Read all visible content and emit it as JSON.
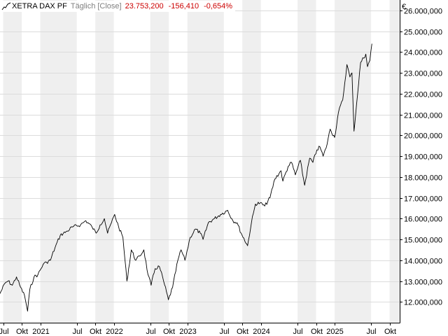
{
  "legend": {
    "name": "XETRA DAX PF",
    "interval": "Täglich",
    "price_type": "[Close]",
    "last": "23.753,200",
    "change": "-156,410",
    "change_pct": "-0,654%"
  },
  "currency_label": "€",
  "colors": {
    "line": "#000000",
    "negative": "#cc0000",
    "band": "#efefef",
    "grid": "#dcdcdc",
    "text": "#000000"
  },
  "chart_data": {
    "type": "line",
    "title": "",
    "xlabel": "",
    "ylabel": "",
    "ylim": [
      11000,
      26500
    ],
    "xlim": [
      "2020-06-15",
      "2025-11-20"
    ],
    "grid": true,
    "legend_position": "top-left",
    "y_ticks": [
      {
        "value": 12000,
        "label": "12.000,000"
      },
      {
        "value": 13000,
        "label": "13.000,000"
      },
      {
        "value": 14000,
        "label": "14.000,000"
      },
      {
        "value": 15000,
        "label": "15.000,000"
      },
      {
        "value": 16000,
        "label": "16.000,000"
      },
      {
        "value": 17000,
        "label": "17.000,000"
      },
      {
        "value": 18000,
        "label": "18.000,000"
      },
      {
        "value": 19000,
        "label": "19.000,000"
      },
      {
        "value": 20000,
        "label": "20.000,000"
      },
      {
        "value": 21000,
        "label": "21.000,000"
      },
      {
        "value": 22000,
        "label": "22.000,000"
      },
      {
        "value": 23000,
        "label": "23.000,000"
      },
      {
        "value": 24000,
        "label": "24.000,000"
      },
      {
        "value": 25000,
        "label": "25.000,000"
      },
      {
        "value": 26000,
        "label": "26.000,000"
      }
    ],
    "x_ticks": [
      {
        "date": "2020-07-01",
        "label": "Jul"
      },
      {
        "date": "2020-10-01",
        "label": "Okt"
      },
      {
        "date": "2021-01-01",
        "label": "2021"
      },
      {
        "date": "2021-07-01",
        "label": "Jul"
      },
      {
        "date": "2021-10-01",
        "label": "Okt"
      },
      {
        "date": "2022-01-01",
        "label": "2022"
      },
      {
        "date": "2022-07-01",
        "label": "Jul"
      },
      {
        "date": "2022-10-01",
        "label": "Okt"
      },
      {
        "date": "2023-01-01",
        "label": "2023"
      },
      {
        "date": "2023-07-01",
        "label": "Jul"
      },
      {
        "date": "2023-10-01",
        "label": "Okt"
      },
      {
        "date": "2024-01-01",
        "label": "2024"
      },
      {
        "date": "2024-07-01",
        "label": "Jul"
      },
      {
        "date": "2024-10-01",
        "label": "Okt"
      },
      {
        "date": "2025-01-01",
        "label": "2025"
      },
      {
        "date": "2025-07-01",
        "label": "Jul"
      },
      {
        "date": "2025-10-01",
        "label": "Okt"
      }
    ],
    "series": [
      {
        "x": [
          "2020-06-15",
          "2020-07-10",
          "2020-07-25",
          "2020-08-15",
          "2020-09-05",
          "2020-09-25",
          "2020-10-15",
          "2020-10-30",
          "2020-11-10",
          "2020-12-01",
          "2020-12-20",
          "2021-01-15",
          "2021-02-01",
          "2021-02-20",
          "2021-03-15",
          "2021-04-10",
          "2021-05-15",
          "2021-06-10",
          "2021-07-20",
          "2021-08-15",
          "2021-09-15",
          "2021-10-05",
          "2021-10-25",
          "2021-11-15",
          "2021-12-01",
          "2021-12-20",
          "2022-01-05",
          "2022-01-25",
          "2022-02-15",
          "2022-03-07",
          "2022-03-29",
          "2022-04-20",
          "2022-05-10",
          "2022-05-30",
          "2022-06-20",
          "2022-07-05",
          "2022-07-25",
          "2022-08-15",
          "2022-09-05",
          "2022-09-29",
          "2022-10-20",
          "2022-11-15",
          "2022-12-01",
          "2022-12-20",
          "2023-01-15",
          "2023-02-10",
          "2023-03-06",
          "2023-03-20",
          "2023-04-15",
          "2023-05-15",
          "2023-06-15",
          "2023-07-20",
          "2023-08-15",
          "2023-09-05",
          "2023-09-25",
          "2023-10-27",
          "2023-11-15",
          "2023-12-05",
          "2023-12-28",
          "2024-01-20",
          "2024-02-15",
          "2024-03-10",
          "2024-04-10",
          "2024-04-19",
          "2024-05-15",
          "2024-06-01",
          "2024-06-20",
          "2024-07-15",
          "2024-08-05",
          "2024-08-30",
          "2024-09-15",
          "2024-10-05",
          "2024-10-20",
          "2024-11-05",
          "2024-11-20",
          "2024-12-10",
          "2025-01-01",
          "2025-01-20",
          "2025-02-10",
          "2025-03-03",
          "2025-03-18",
          "2025-03-28",
          "2025-04-07",
          "2025-04-20",
          "2025-05-10",
          "2025-06-05",
          "2025-06-13",
          "2025-06-25",
          "2025-07-05"
        ],
        "y": [
          12400,
          12900,
          13000,
          12800,
          13200,
          12700,
          12300,
          11550,
          12600,
          13200,
          13300,
          13800,
          13900,
          14000,
          14600,
          15200,
          15400,
          15600,
          15700,
          15900,
          15600,
          15300,
          15700,
          16000,
          15300,
          15800,
          16200,
          15600,
          15100,
          13000,
          14500,
          14000,
          14200,
          14500,
          13300,
          12800,
          13600,
          13700,
          13000,
          12100,
          12700,
          14000,
          14500,
          14000,
          15100,
          15500,
          15300,
          15000,
          15800,
          16000,
          16200,
          16400,
          15900,
          15800,
          15300,
          14700,
          15800,
          16700,
          16750,
          16600,
          17000,
          17900,
          18300,
          17800,
          18500,
          18700,
          18100,
          18800,
          17600,
          18900,
          18700,
          19300,
          19450,
          19000,
          19400,
          20300,
          19900,
          21100,
          21700,
          23400,
          22800,
          23000,
          20200,
          21500,
          23500,
          23900,
          23300,
          23600,
          24400
        ]
      }
    ]
  }
}
